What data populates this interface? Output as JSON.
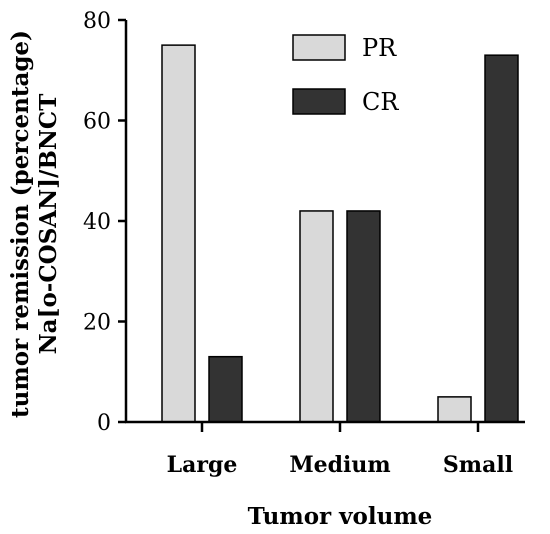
{
  "chart_data": {
    "type": "bar",
    "categories": [
      "Large",
      "Medium",
      "Small"
    ],
    "series": [
      {
        "name": "PR",
        "values": [
          75,
          42,
          5
        ],
        "color": "#d9d9d9"
      },
      {
        "name": "CR",
        "values": [
          13,
          42,
          73
        ],
        "color": "#333333"
      }
    ],
    "xlabel": "Tumor volume",
    "ylabel_lines": [
      "tumor remission (percentage)",
      "Na[o-COSAN]/BNCT"
    ],
    "ylim": [
      0,
      80
    ],
    "yticks": [
      0,
      20,
      40,
      60,
      80
    ],
    "legend_position": "top-center",
    "grid": false
  }
}
